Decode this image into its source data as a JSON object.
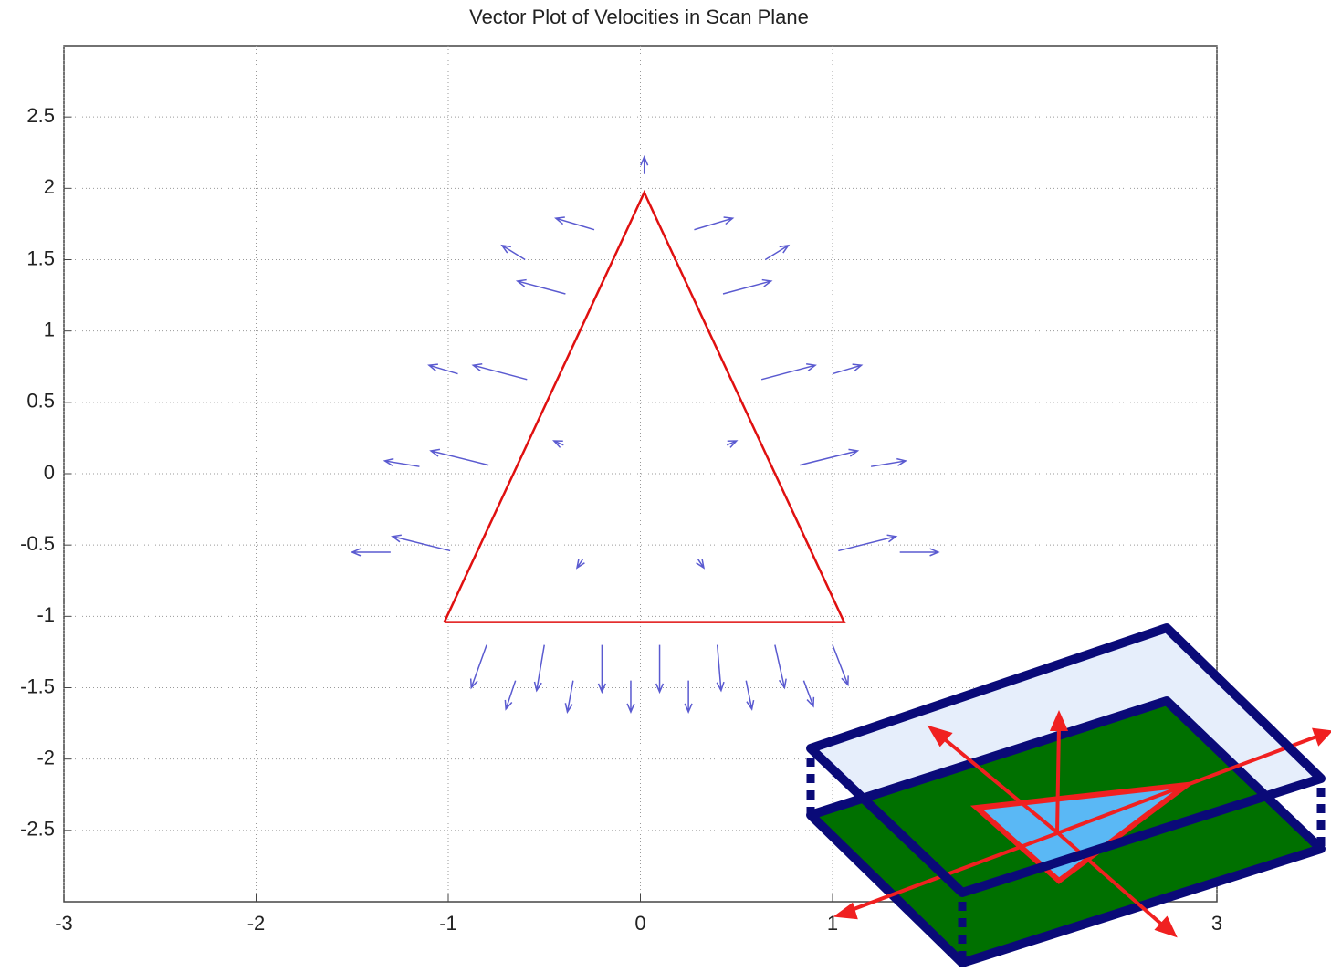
{
  "chart_data": {
    "type": "quiver",
    "title": "Vector Plot of Velocities in Scan Plane",
    "xlim": [
      -3,
      3
    ],
    "ylim": [
      -3,
      3
    ],
    "xticks": [
      -3,
      -2,
      -1,
      0,
      1,
      3
    ],
    "yticks": [
      -2.5,
      -2,
      -1.5,
      -1,
      -0.5,
      0,
      0.5,
      1,
      1.5,
      2,
      2.5
    ],
    "grid": true,
    "color": "#5a5ad0",
    "x": [
      -0.99,
      -0.79,
      -0.59,
      -0.39,
      -0.24,
      1.03,
      0.83,
      0.63,
      0.43,
      0.28,
      -0.8,
      -0.5,
      -0.2,
      0.1,
      0.4,
      0.7,
      1.0,
      -0.65,
      -0.35,
      -0.05,
      0.25,
      0.55,
      0.85,
      -1.3,
      -1.15,
      -0.95,
      1.35,
      1.2,
      1.0,
      -0.6,
      0.65,
      0.02,
      -0.3,
      0.3,
      -0.4,
      0.45
    ],
    "y": [
      -0.54,
      0.06,
      0.66,
      1.26,
      1.71,
      -0.54,
      0.06,
      0.66,
      1.26,
      1.71,
      -1.2,
      -1.2,
      -1.2,
      -1.2,
      -1.2,
      -1.2,
      -1.2,
      -1.45,
      -1.45,
      -1.45,
      -1.45,
      -1.45,
      -1.45,
      -0.55,
      0.05,
      0.7,
      -0.55,
      0.05,
      0.7,
      1.5,
      1.5,
      2.1,
      -0.6,
      -0.6,
      0.2,
      0.2
    ],
    "u": [
      -0.3,
      -0.3,
      -0.28,
      -0.25,
      -0.2,
      0.3,
      0.3,
      0.28,
      0.25,
      0.2,
      -0.08,
      -0.04,
      0,
      0,
      0.02,
      0.05,
      0.08,
      -0.05,
      -0.03,
      0,
      0,
      0.03,
      0.05,
      -0.2,
      -0.18,
      -0.15,
      0.2,
      0.18,
      0.15,
      -0.12,
      0.12,
      0,
      -0.03,
      0.03,
      -0.05,
      0.05
    ],
    "v": [
      0.1,
      0.1,
      0.1,
      0.09,
      0.08,
      0.1,
      0.1,
      0.1,
      0.09,
      0.08,
      -0.3,
      -0.32,
      -0.33,
      -0.33,
      -0.32,
      -0.3,
      -0.28,
      -0.2,
      -0.22,
      -0.22,
      -0.22,
      -0.2,
      -0.18,
      0,
      0.04,
      0.06,
      0,
      0.04,
      0.06,
      0.1,
      0.1,
      0.12,
      -0.06,
      -0.06,
      0.03,
      0.03
    ],
    "outline": {
      "color": "#e01010",
      "x": [
        -1.02,
        0.02,
        1.06,
        -1.02
      ],
      "y": [
        -1.04,
        1.97,
        -1.04,
        -1.04
      ]
    }
  }
}
